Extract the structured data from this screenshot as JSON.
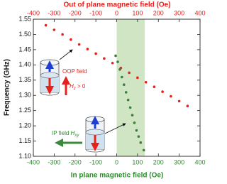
{
  "chart_data": {
    "type": "scatter",
    "x2_label": "Out of plane magnetic field (Oe)",
    "x_label": "In plane magnetic field (Oe)",
    "y_label": "Frequency (GHz)",
    "xlim": [
      -400,
      400
    ],
    "xticks": [
      -400,
      -300,
      -200,
      -100,
      0,
      100,
      200,
      300,
      400
    ],
    "x2lim": [
      -400,
      400
    ],
    "x2ticks": [
      -400,
      -300,
      -200,
      -100,
      0,
      100,
      200,
      300,
      400
    ],
    "ylim": [
      1.1,
      1.55
    ],
    "yticks": [
      {
        "value": 1.1,
        "label": "1.10"
      },
      1.15,
      {
        "value": 1.2,
        "label": "1.20"
      },
      1.25,
      {
        "value": 1.3,
        "label": "1.30"
      },
      1.35,
      {
        "value": 1.4,
        "label": "1.40"
      },
      1.45,
      {
        "value": 1.5,
        "label": "1.50"
      },
      1.55
    ],
    "x_color": "#2e8b2e",
    "x2_color": "#e8201c",
    "shaded_span": [
      0,
      135
    ],
    "shaded_color": "#cfe5c4",
    "series": [
      {
        "axis": "x2",
        "color": "#e8201c",
        "x": [
          -340,
          -300,
          -260,
          -220,
          -180,
          -140,
          -100,
          -60,
          -20,
          20,
          60,
          100,
          140,
          180,
          220,
          260,
          300,
          340
        ],
        "values": [
          1.53,
          1.515,
          1.5,
          1.483,
          1.467,
          1.452,
          1.437,
          1.421,
          1.406,
          1.39,
          1.374,
          1.358,
          1.343,
          1.328,
          1.312,
          1.297,
          1.281,
          1.265
        ]
      },
      {
        "axis": "x",
        "color": "#3b7d3b",
        "x": [
          -5,
          5,
          15,
          25,
          35,
          45,
          55,
          65,
          75,
          85,
          95,
          105,
          115,
          130
        ],
        "values": [
          1.43,
          1.41,
          1.385,
          1.36,
          1.335,
          1.31,
          1.285,
          1.26,
          1.235,
          1.21,
          1.185,
          1.165,
          1.145,
          1.12
        ]
      }
    ],
    "annotations": {
      "oop": "OOP field",
      "hz": {
        "symbol": "H",
        "subscript": "z",
        "suffix": " > 0"
      },
      "ip": {
        "text": "IP field ",
        "symbol": "H",
        "subscript": "xy"
      }
    }
  }
}
